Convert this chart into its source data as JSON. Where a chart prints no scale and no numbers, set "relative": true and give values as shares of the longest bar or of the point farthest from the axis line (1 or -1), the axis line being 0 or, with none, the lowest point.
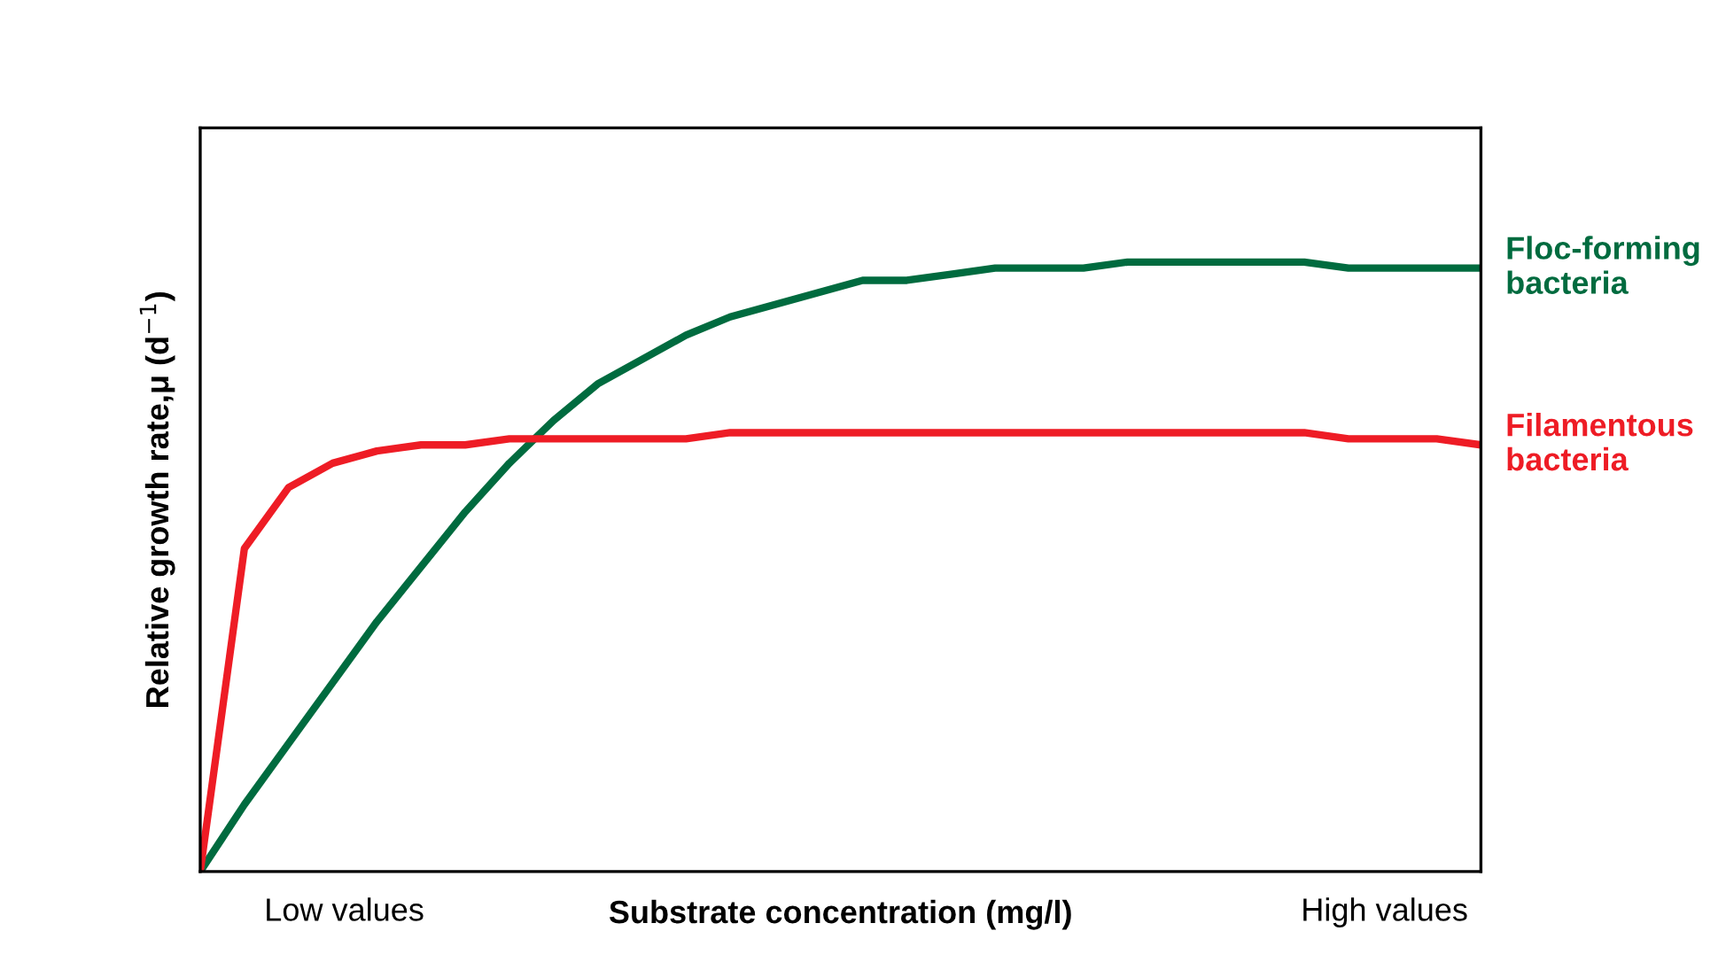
{
  "chart_data": {
    "type": "line",
    "relative": true,
    "xlabel": "Substrate concentration (mg/l)",
    "ylabel": "Relative growth rate,μ (d$^{−1}$)",
    "categories": [
      null,
      null,
      null,
      null,
      null,
      null,
      null,
      null,
      null,
      null,
      null,
      null,
      null,
      null,
      null,
      null,
      null,
      null,
      null,
      null,
      null,
      null,
      null,
      null,
      null,
      null,
      null,
      null,
      null,
      null
    ],
    "series": [
      {
        "name": "Floc-forming\nbacteria",
        "color": "#006b3f",
        "values": [
          0,
          0.11,
          0.21,
          0.31,
          0.41,
          0.5,
          0.59,
          0.67,
          0.74,
          0.8,
          0.84,
          0.88,
          0.91,
          0.93,
          0.95,
          0.97,
          0.97,
          0.98,
          0.99,
          0.99,
          0.99,
          1.0,
          1.0,
          1.0,
          1.0,
          1.0,
          0.99,
          0.99,
          0.99,
          0.99
        ]
      },
      {
        "name": "Filamentous\nbacteria",
        "color": "#ee1c25",
        "values": [
          0,
          0.53,
          0.63,
          0.67,
          0.69,
          0.7,
          0.7,
          0.71,
          0.71,
          0.71,
          0.71,
          0.71,
          0.72,
          0.72,
          0.72,
          0.72,
          0.72,
          0.72,
          0.72,
          0.72,
          0.72,
          0.72,
          0.72,
          0.72,
          0.72,
          0.72,
          0.71,
          0.71,
          0.71,
          0.7
        ]
      }
    ],
    "annotations": [
      "Low values",
      "High values"
    ],
    "legend": false,
    "grid": false
  }
}
